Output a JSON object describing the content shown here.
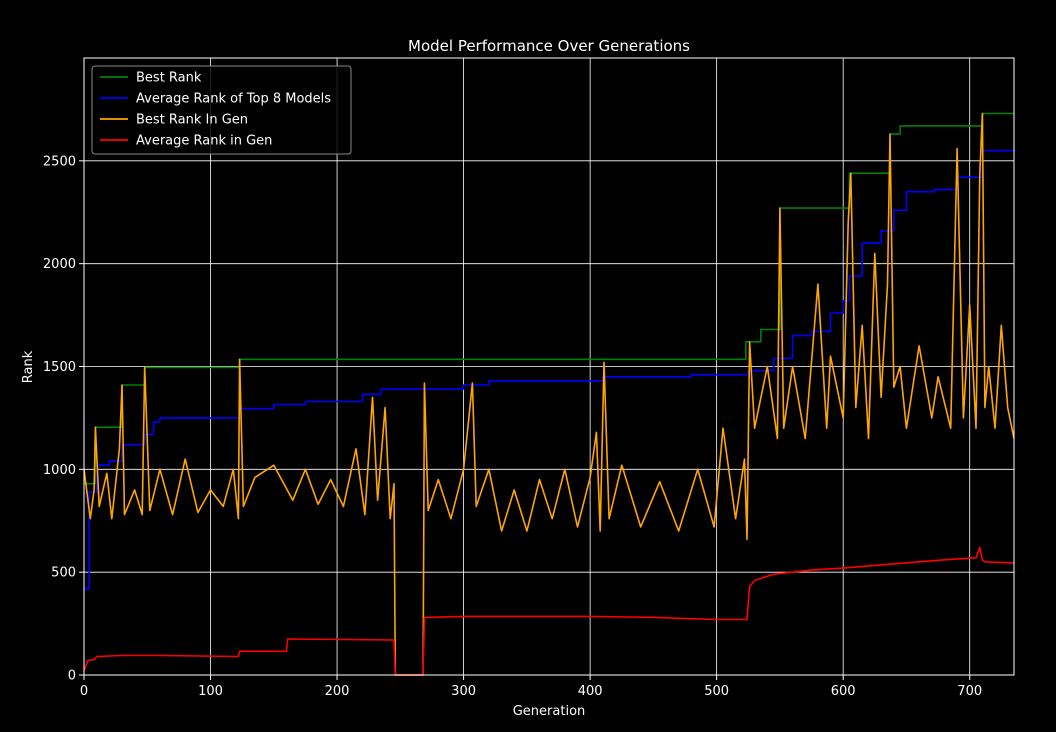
{
  "chart_data": {
    "type": "line",
    "title": "Model Performance Over Generations",
    "xlabel": "Generation",
    "ylabel": "Rank",
    "xlim": [
      0,
      735
    ],
    "ylim": [
      0,
      3000
    ],
    "xticks": [
      0,
      100,
      200,
      300,
      400,
      500,
      600,
      700
    ],
    "yticks": [
      0,
      500,
      1000,
      1500,
      2000,
      2500
    ],
    "grid": true,
    "legend_position": "upper-left",
    "background": "#000000",
    "series": [
      {
        "name": "Best Rank",
        "color": "#008000",
        "step": true,
        "x": [
          0,
          9,
          30,
          48,
          123,
          523,
          535,
          550,
          605,
          637,
          645,
          710,
          735
        ],
        "y": [
          930,
          1205,
          1410,
          1495,
          1535,
          1620,
          1680,
          2270,
          2440,
          2630,
          2670,
          2730,
          2730
        ]
      },
      {
        "name": "Average Rank of Top 8 Models",
        "color": "#0000ff",
        "step": true,
        "x": [
          0,
          4,
          10,
          20,
          30,
          48,
          55,
          60,
          123,
          150,
          175,
          220,
          235,
          300,
          320,
          410,
          480,
          525,
          545,
          560,
          575,
          590,
          600,
          605,
          615,
          630,
          640,
          650,
          672,
          690,
          710,
          735
        ],
        "y": [
          420,
          890,
          1020,
          1040,
          1120,
          1170,
          1230,
          1250,
          1295,
          1315,
          1330,
          1365,
          1390,
          1410,
          1430,
          1450,
          1460,
          1480,
          1540,
          1650,
          1670,
          1760,
          1820,
          1940,
          2100,
          2160,
          2260,
          2350,
          2360,
          2420,
          2550,
          2550
        ]
      },
      {
        "name": "Best Rank In Gen",
        "color": "#ffa500",
        "step": false,
        "x": [
          0,
          5,
          8,
          9,
          12,
          18,
          22,
          28,
          30,
          32,
          40,
          46,
          48,
          52,
          60,
          70,
          80,
          90,
          100,
          110,
          118,
          122,
          123,
          126,
          135,
          150,
          165,
          175,
          185,
          195,
          205,
          215,
          222,
          228,
          232,
          238,
          242,
          245,
          246,
          268,
          269,
          272,
          280,
          290,
          300,
          307,
          310,
          320,
          330,
          340,
          350,
          360,
          370,
          380,
          390,
          400,
          405,
          408,
          411,
          415,
          425,
          440,
          455,
          470,
          485,
          498,
          505,
          515,
          522,
          524,
          526,
          530,
          540,
          548,
          550,
          553,
          560,
          570,
          580,
          587,
          590,
          600,
          604,
          606,
          610,
          615,
          620,
          625,
          630,
          635,
          637,
          640,
          645,
          650,
          660,
          670,
          675,
          685,
          690,
          695,
          700,
          705,
          708,
          710,
          712,
          715,
          720,
          725,
          730,
          735
        ],
        "y": [
          1000,
          760,
          900,
          1205,
          820,
          980,
          760,
          1100,
          1410,
          780,
          900,
          780,
          1495,
          800,
          1000,
          780,
          1050,
          790,
          900,
          820,
          1000,
          760,
          1535,
          820,
          960,
          1020,
          850,
          1000,
          830,
          950,
          820,
          1100,
          780,
          1350,
          850,
          1300,
          760,
          930,
          0,
          0,
          1420,
          800,
          950,
          760,
          1000,
          1420,
          820,
          1000,
          700,
          900,
          700,
          950,
          760,
          1000,
          720,
          960,
          1180,
          700,
          1520,
          760,
          1020,
          720,
          940,
          700,
          1000,
          720,
          1200,
          760,
          1050,
          660,
          1620,
          1200,
          1500,
          1150,
          2270,
          1200,
          1500,
          1150,
          1900,
          1200,
          1550,
          1250,
          2200,
          2440,
          1300,
          1700,
          1150,
          2050,
          1350,
          1900,
          2630,
          1400,
          1500,
          1200,
          1600,
          1250,
          1450,
          1200,
          2560,
          1250,
          1800,
          1200,
          2440,
          2730,
          1300,
          1500,
          1200,
          1700,
          1300,
          1150
        ]
      },
      {
        "name": "Average Rank in Gen",
        "color": "#ff0000",
        "step": false,
        "x": [
          0,
          3,
          8,
          10,
          30,
          60,
          122,
          123,
          160,
          161,
          245,
          246,
          268,
          269,
          300,
          350,
          400,
          450,
          500,
          524,
          526,
          530,
          545,
          575,
          600,
          640,
          680,
          705,
          708,
          710,
          712,
          735
        ],
        "y": [
          20,
          70,
          75,
          90,
          95,
          95,
          90,
          115,
          115,
          175,
          170,
          0,
          0,
          280,
          285,
          285,
          285,
          280,
          270,
          270,
          430,
          460,
          490,
          510,
          520,
          540,
          560,
          570,
          620,
          560,
          550,
          545
        ]
      }
    ]
  }
}
